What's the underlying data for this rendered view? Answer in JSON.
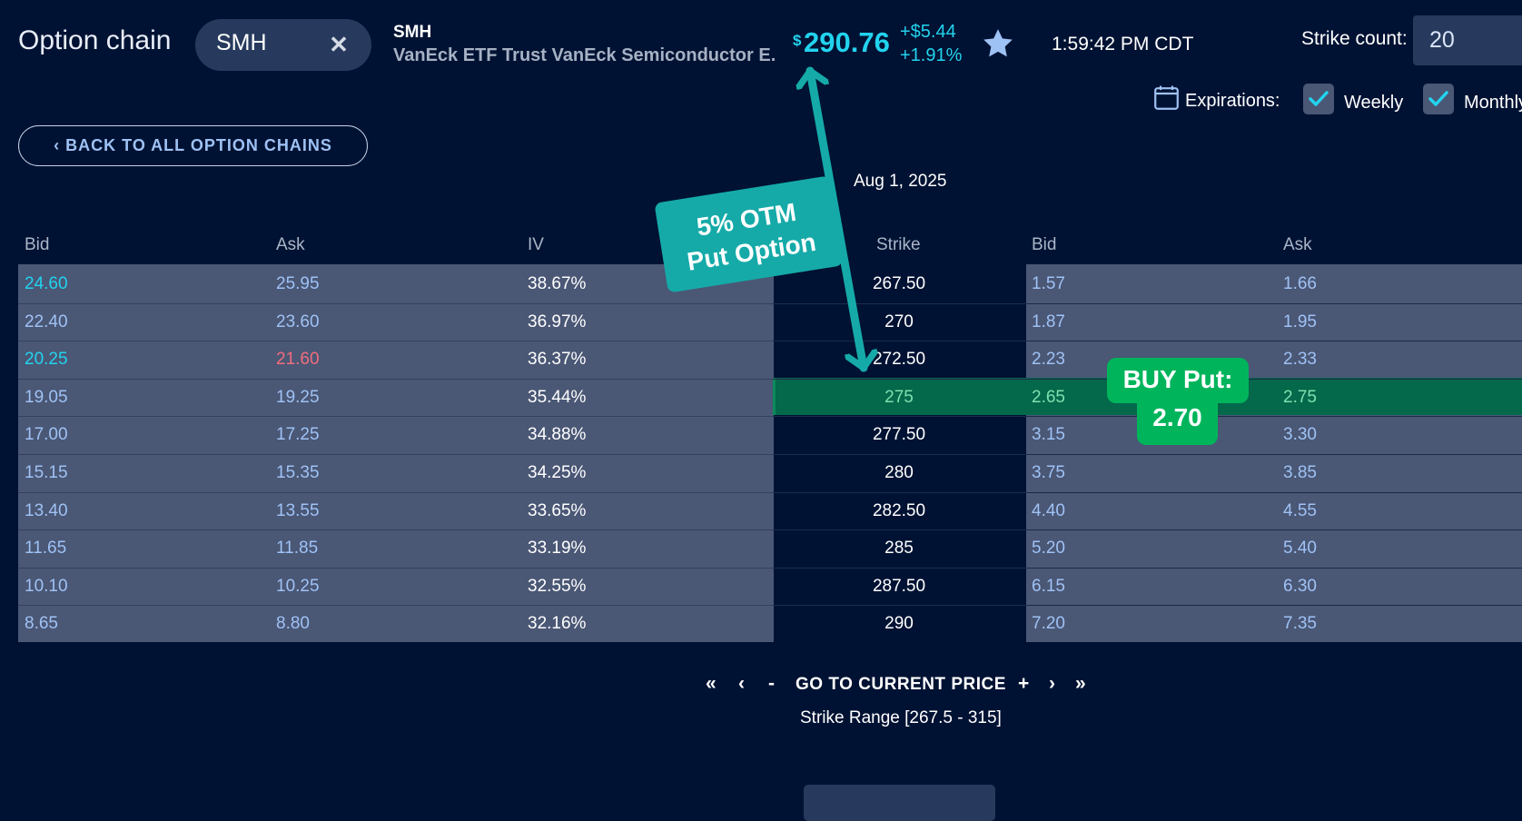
{
  "header": {
    "title": "Option chain",
    "search_value": "SMH",
    "symbol": "SMH",
    "symbol_name": "VanEck ETF Trust VanEck Semiconductor E...",
    "price_currency": "$",
    "price": "290.76",
    "change": "+$5.44",
    "change_pct": "+1.91%",
    "time": "1:59:42 PM CDT",
    "strike_count_label": "Strike count:",
    "strike_count_value": "20",
    "expirations_label": "Expirations:",
    "weekly_label": "Weekly",
    "monthly_label": "Monthly"
  },
  "back_button": "‹ BACK TO ALL OPTION CHAINS",
  "expiration_date": "Aug 1, 2025",
  "columns": {
    "call_bid": "Bid",
    "call_ask": "Ask",
    "call_iv": "IV",
    "strike": "Strike",
    "put_bid": "Bid",
    "put_ask": "Ask"
  },
  "rows": [
    {
      "call_bid": "24.60",
      "call_ask": "25.95",
      "iv": "38.67%",
      "strike": "267.50",
      "put_bid": "1.57",
      "put_ask": "1.66"
    },
    {
      "call_bid": "22.40",
      "call_ask": "23.60",
      "iv": "36.97%",
      "strike": "270",
      "put_bid": "1.87",
      "put_ask": "1.95"
    },
    {
      "call_bid": "20.25",
      "call_ask": "21.60",
      "iv": "36.37%",
      "strike": "272.50",
      "put_bid": "2.23",
      "put_ask": "2.33"
    },
    {
      "call_bid": "19.05",
      "call_ask": "19.25",
      "iv": "35.44%",
      "strike": "275",
      "put_bid": "2.65",
      "put_ask": "2.75"
    },
    {
      "call_bid": "17.00",
      "call_ask": "17.25",
      "iv": "34.88%",
      "strike": "277.50",
      "put_bid": "3.15",
      "put_ask": "3.30"
    },
    {
      "call_bid": "15.15",
      "call_ask": "15.35",
      "iv": "34.25%",
      "strike": "280",
      "put_bid": "3.75",
      "put_ask": "3.85"
    },
    {
      "call_bid": "13.40",
      "call_ask": "13.55",
      "iv": "33.65%",
      "strike": "282.50",
      "put_bid": "4.40",
      "put_ask": "4.55"
    },
    {
      "call_bid": "11.65",
      "call_ask": "11.85",
      "iv": "33.19%",
      "strike": "285",
      "put_bid": "5.20",
      "put_ask": "5.40"
    },
    {
      "call_bid": "10.10",
      "call_ask": "10.25",
      "iv": "32.55%",
      "strike": "287.50",
      "put_bid": "6.15",
      "put_ask": "6.30"
    },
    {
      "call_bid": "8.65",
      "call_ask": "8.80",
      "iv": "32.16%",
      "strike": "290",
      "put_bid": "7.20",
      "put_ask": "7.35"
    }
  ],
  "highlighted_row_index": 3,
  "pager": {
    "first": "«",
    "prev": "‹",
    "minus": "-",
    "goto": "GO TO CURRENT PRICE",
    "plus": "+",
    "next": "›",
    "last": "»",
    "strike_range": "Strike Range [267.5 - 315]"
  },
  "annotations": {
    "otm_line1": "5% OTM",
    "otm_line2": "Put Option",
    "buy_line1": "BUY Put:",
    "buy_line2": "2.70"
  },
  "colors": {
    "background": "#001233",
    "accent_cyan": "#22d3ee",
    "call_bid_cyan": "#22d3ee",
    "ask_red": "#f26d7d",
    "cell_blue": "#9fc2f5",
    "panel": "#4a5775",
    "highlight_green": "#04684a",
    "annotation_teal": "#15aaa8",
    "annotation_green": "#00b45b"
  }
}
